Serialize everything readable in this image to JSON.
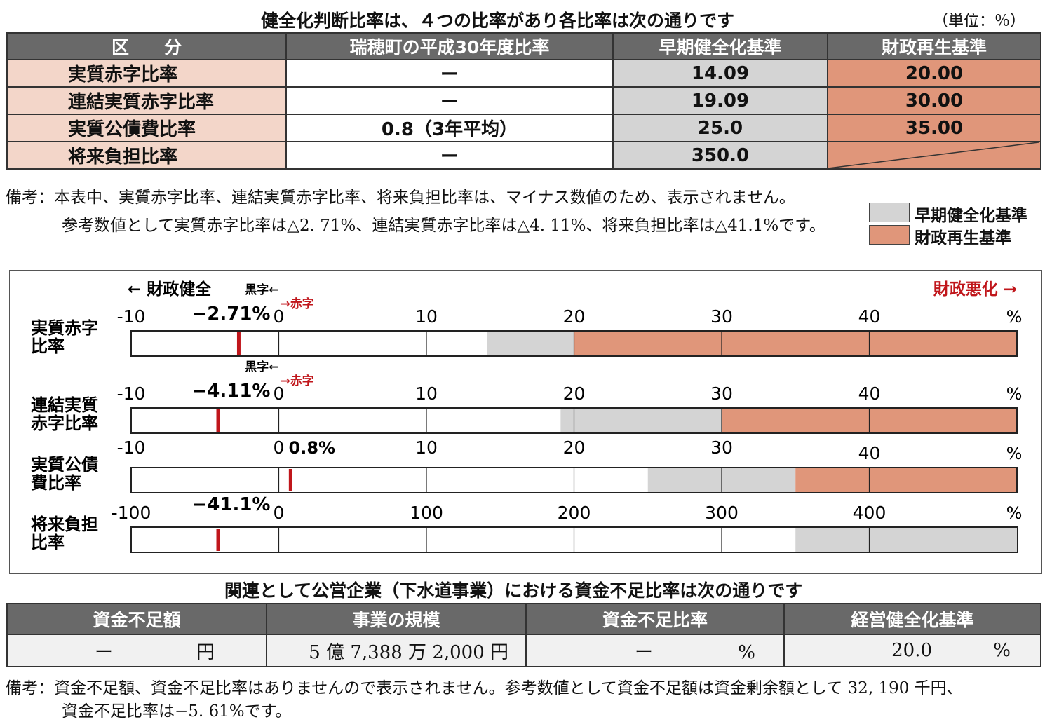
{
  "table1": {
    "title": "健全化判断比率は、４つの比率があり各比率は次の通りです",
    "unit": "（単位：％）",
    "headers": [
      "区　　分",
      "瑞穂町の平成30年度比率",
      "早期健全化基準",
      "財政再生基準"
    ],
    "rows": [
      {
        "label": "実質赤字比率",
        "value": "ー",
        "early": "14.09",
        "rebuild": "20.00"
      },
      {
        "label": "連結実質赤字比率",
        "value": "ー",
        "early": "19.09",
        "rebuild": "30.00"
      },
      {
        "label": "実質公債費比率",
        "value": "0.8（3年平均）",
        "early": "25.0",
        "rebuild": "35.00"
      },
      {
        "label": "将来負担比率",
        "value": "ー",
        "early": "350.0",
        "rebuild": ""
      }
    ]
  },
  "notes1": {
    "line1": "備考：本表中、実質赤字比率、連結実質赤字比率、将来負担比率は、マイナス数値のため、表示されません。",
    "line2": "参考数値として実質赤字比率は△2. 71%、連結実質赤字比率は△4. 11%、将来負担比率は△41.1%です。"
  },
  "legend": {
    "early_label": "早期健全化基準",
    "rebuild_label": "財政再生基準",
    "early_color": "#d4d4d4",
    "rebuild_color": "#e0967a"
  },
  "chart_data": {
    "type": "bar",
    "direction_left": "← 財政健全",
    "direction_right": "財政悪化 →",
    "surplus_label": "黒字←",
    "deficit_label": "→赤字",
    "marker_color": "#c0161b",
    "bars": [
      {
        "label_lines": [
          "実質赤字",
          "比率"
        ],
        "xlim": [
          -10,
          50
        ],
        "ticks": [
          "-10",
          "0",
          "10",
          "20",
          "30",
          "40",
          "%"
        ],
        "value": -2.71,
        "value_label": "−2.71%",
        "early": 14.09,
        "rebuild": 20.0,
        "show_sign_labels": true
      },
      {
        "label_lines": [
          "連結実質",
          "赤字比率"
        ],
        "xlim": [
          -10,
          50
        ],
        "ticks": [
          "-10",
          "0",
          "10",
          "20",
          "30",
          "40",
          "%"
        ],
        "value": -4.11,
        "value_label": "−4.11%",
        "early": 19.09,
        "rebuild": 30.0,
        "show_sign_labels": true
      },
      {
        "label_lines": [
          "実質公債",
          "費比率"
        ],
        "xlim": [
          -10,
          50
        ],
        "ticks": [
          "-10",
          "0",
          "10",
          "20",
          "30",
          "40",
          "%"
        ],
        "value": 0.8,
        "value_label": "0.8%",
        "early": 25.0,
        "rebuild": 35.0,
        "show_sign_labels": false
      },
      {
        "label_lines": [
          "将来負担",
          "比率"
        ],
        "xlim": [
          -100,
          500
        ],
        "ticks": [
          "-100",
          "0",
          "100",
          "200",
          "300",
          "400",
          "%"
        ],
        "value": -41.1,
        "value_label": "−41.1%",
        "early": 350.0,
        "rebuild": null,
        "show_sign_labels": false
      }
    ]
  },
  "table2": {
    "title": "関連として公営企業（下水道事業）における資金不足比率は次の通りです",
    "headers": [
      "資金不足額",
      "事業の規模",
      "資金不足比率",
      "経営健全化基準"
    ],
    "row": {
      "shortfall_value": "ー",
      "shortfall_unit": "円",
      "scale": "5 億 7,388 万 2,000 円",
      "ratio_value": "ー",
      "ratio_unit": "%",
      "standard_value": "20.0",
      "standard_unit": "%"
    }
  },
  "notes2": {
    "line1": "備考：資金不足額、資金不足比率はありませんので表示されません。参考数値として資金不足額は資金剰余額として 32, 190 千円、",
    "line2": "資金不足比率は−5. 61%です。"
  }
}
